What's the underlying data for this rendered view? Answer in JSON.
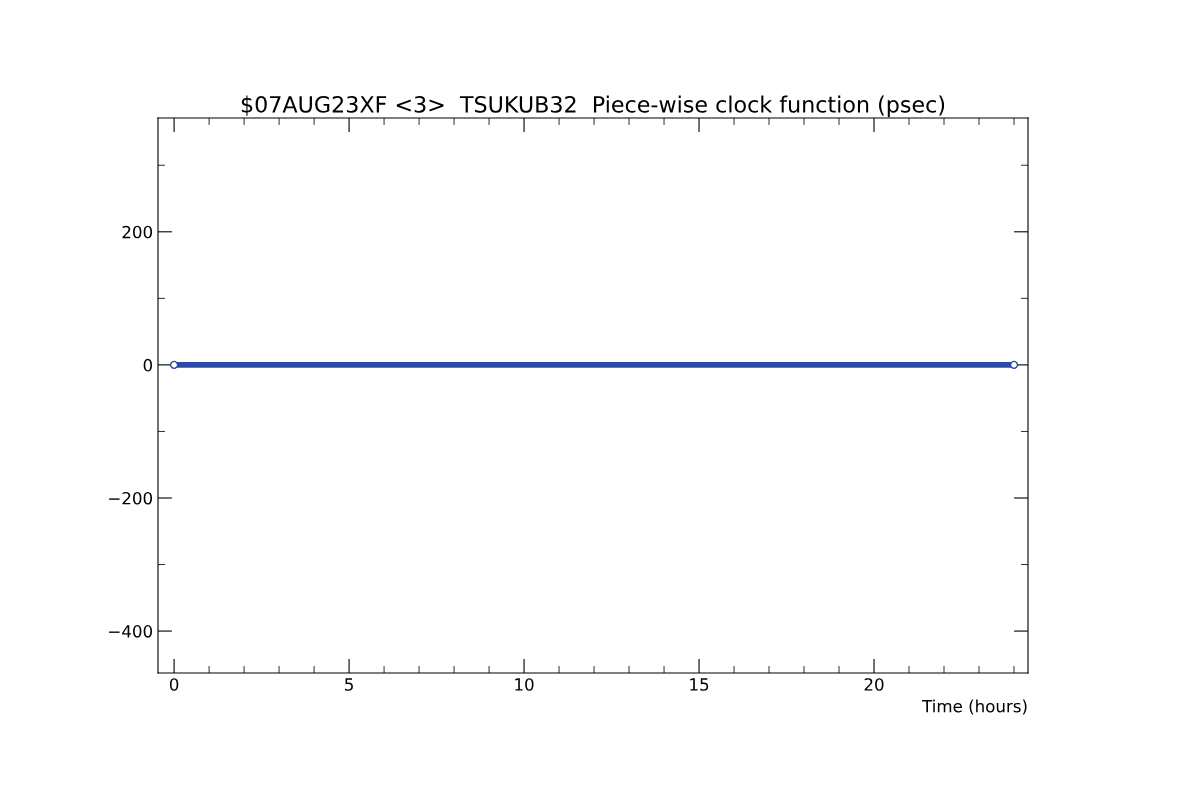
{
  "chart_data": {
    "type": "line",
    "title": "$07AUG23XF <3>  TSUKUB32  Piece-wise clock function (psec)",
    "xlabel": "Time (hours)",
    "x": [
      0,
      24
    ],
    "series": [
      {
        "color": "#2b4aa8",
        "values": [
          0,
          0
        ]
      }
    ],
    "marker": "circle",
    "xlim": [
      -0.46,
      24.4
    ],
    "ylim": [
      -463,
      371
    ],
    "xticks": [
      0,
      5,
      10,
      15,
      20
    ],
    "yticks": [
      -400,
      -200,
      0,
      200
    ],
    "grid": false,
    "legend": false
  }
}
